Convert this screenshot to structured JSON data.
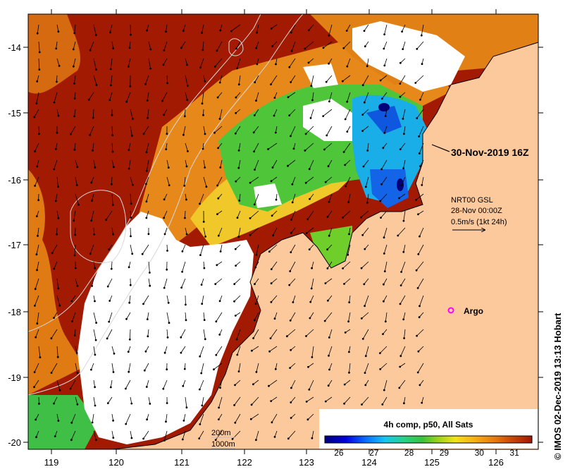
{
  "map": {
    "timestamp": "30-Nov-2019 16Z",
    "current_product": "NRT00 GSL",
    "current_date": "28-Nov 00:00Z",
    "current_scale": "0.5m/s (1kt 24h)",
    "argo_label": "Argo",
    "isobath_labels": [
      "200m",
      "1000m"
    ],
    "colorbar_title": "4h comp, p50, All Sats",
    "colorbar_ticks": [
      "26",
      "27",
      "28",
      "29",
      "30",
      "31"
    ],
    "colorbar_range": [
      25.6,
      31.5
    ],
    "lon_ticks": [
      "119",
      "120",
      "121",
      "122",
      "123",
      "124",
      "125",
      "126"
    ],
    "lat_ticks": [
      "-14",
      "-15",
      "-16",
      "-17",
      "-18",
      "-19",
      "-20"
    ],
    "credit": "© IMOS 02-Dec-2019 13:13 Hobart",
    "colors": {
      "land": "#fcc99d",
      "no_data": "#ffffff",
      "argo": "#ff00ff"
    }
  }
}
